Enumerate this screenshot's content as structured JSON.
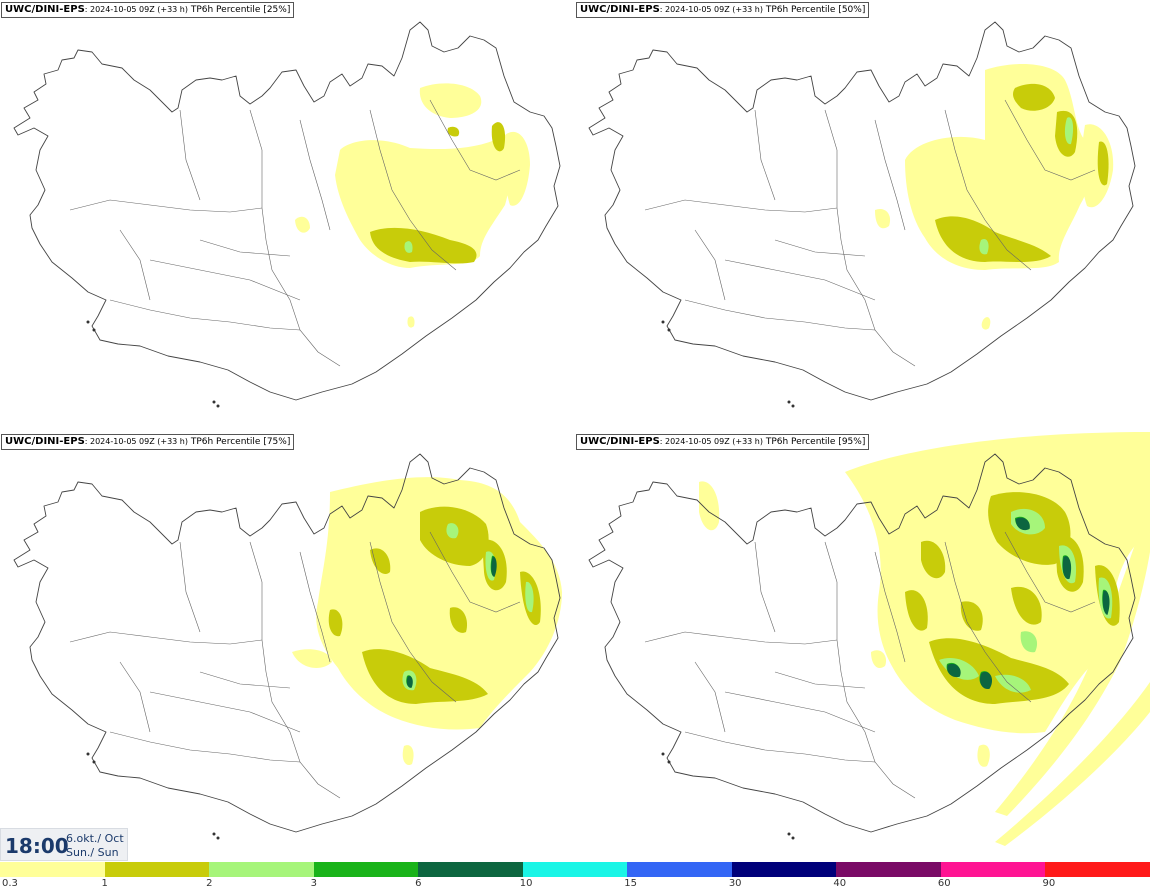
{
  "panels": [
    {
      "id": "p1",
      "model": "UWC/DINI-EPS",
      "run": ": 2024-10-05 09Z (+33 h)",
      "field": " TP6h Percentile [25%]",
      "level": 1
    },
    {
      "id": "p2",
      "model": "UWC/DINI-EPS",
      "run": ": 2024-10-05 09Z (+33 h)",
      "field": " TP6h Percentile [50%]",
      "level": 2
    },
    {
      "id": "p3",
      "model": "UWC/DINI-EPS",
      "run": ": 2024-10-05 09Z (+33 h)",
      "field": " TP6h Percentile [75%]",
      "level": 3
    },
    {
      "id": "p4",
      "model": "UWC/DINI-EPS",
      "run": ": 2024-10-05 09Z (+33 h)",
      "field": " TP6h Percentile [95%]",
      "level": 4
    }
  ],
  "valid_time": {
    "hour": "18:00",
    "date_line1": "6.okt./ Oct",
    "date_line2": "Sun./ Sun"
  },
  "legend": {
    "colors": [
      "#ffff99",
      "#c8cc0a",
      "#a6f57a",
      "#19b319",
      "#0c6640",
      "#1af5e6",
      "#3366f5",
      "#00007a",
      "#7a0a66",
      "#ff1493",
      "#ff1a1a"
    ],
    "labels": [
      "0.3",
      "1",
      "2",
      "3",
      "6",
      "10",
      "15",
      "30",
      "40",
      "60",
      "90"
    ]
  }
}
